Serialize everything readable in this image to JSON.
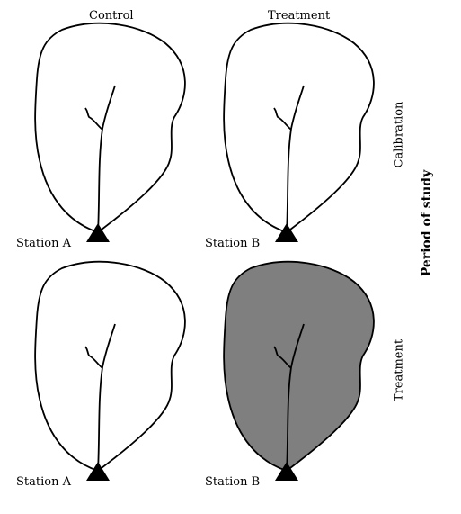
{
  "columns": {
    "control": "Control",
    "treatment": "Treatment"
  },
  "rows": {
    "calibration": "Calibration",
    "treatment": "Treatment"
  },
  "axis_label": "Period of study",
  "stations": {
    "a_top": "Station A",
    "b_top": "Station B",
    "a_bottom": "Station A",
    "b_bottom": "Station B"
  },
  "colors": {
    "treated_fill": "#7f7f7f",
    "untreated_fill": "#ffffff",
    "stroke": "#000000"
  }
}
